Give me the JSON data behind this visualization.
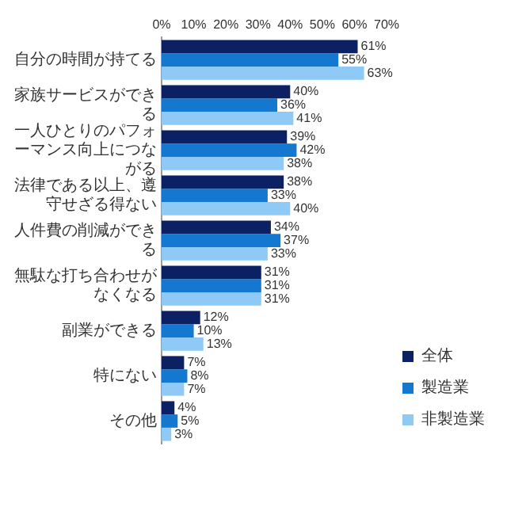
{
  "chart_data": {
    "type": "bar",
    "orientation": "horizontal",
    "categories": [
      "自分の時間が持てる",
      "家族サービスができる",
      "一人ひとりのパフォーマンス向上につながる",
      "法律である以上、遵守せざる得ない",
      "人件費の削減ができる",
      "無駄な打ち合わせがなくなる",
      "副業ができる",
      "特にない",
      "その他"
    ],
    "series": [
      {
        "name": "全体",
        "color": "#0b2163",
        "values": [
          61,
          40,
          39,
          38,
          34,
          31,
          12,
          7,
          4
        ],
        "value_labels": [
          "61%",
          "40%",
          "39%",
          "38%",
          "34%",
          "31%",
          "12%",
          "7%",
          "4%"
        ]
      },
      {
        "name": "製造業",
        "color": "#1478d0",
        "values": [
          55,
          36,
          42,
          33,
          37,
          31,
          10,
          8,
          5
        ],
        "value_labels": [
          "55%",
          "36%",
          "42%",
          "33%",
          "37%",
          "31%",
          "10%",
          "8%",
          "5%"
        ]
      },
      {
        "name": "非製造業",
        "color": "#8fc9f5",
        "values": [
          63,
          41,
          38,
          40,
          33,
          31,
          13,
          7,
          3
        ],
        "value_labels": [
          "63%",
          "41%",
          "38%",
          "40%",
          "33%",
          "31%",
          "13%",
          "7%",
          "3%"
        ]
      }
    ],
    "xlim": [
      0,
      70
    ],
    "xticks": [
      {
        "value": 0,
        "label": "0%"
      },
      {
        "value": 10,
        "label": "10%"
      },
      {
        "value": 20,
        "label": "20%"
      },
      {
        "value": 30,
        "label": "30%"
      },
      {
        "value": 40,
        "label": "40%"
      },
      {
        "value": 50,
        "label": "50%"
      },
      {
        "value": 60,
        "label": "60%"
      },
      {
        "value": 70,
        "label": "70%"
      }
    ],
    "grid": false,
    "legend": "bottom right"
  }
}
